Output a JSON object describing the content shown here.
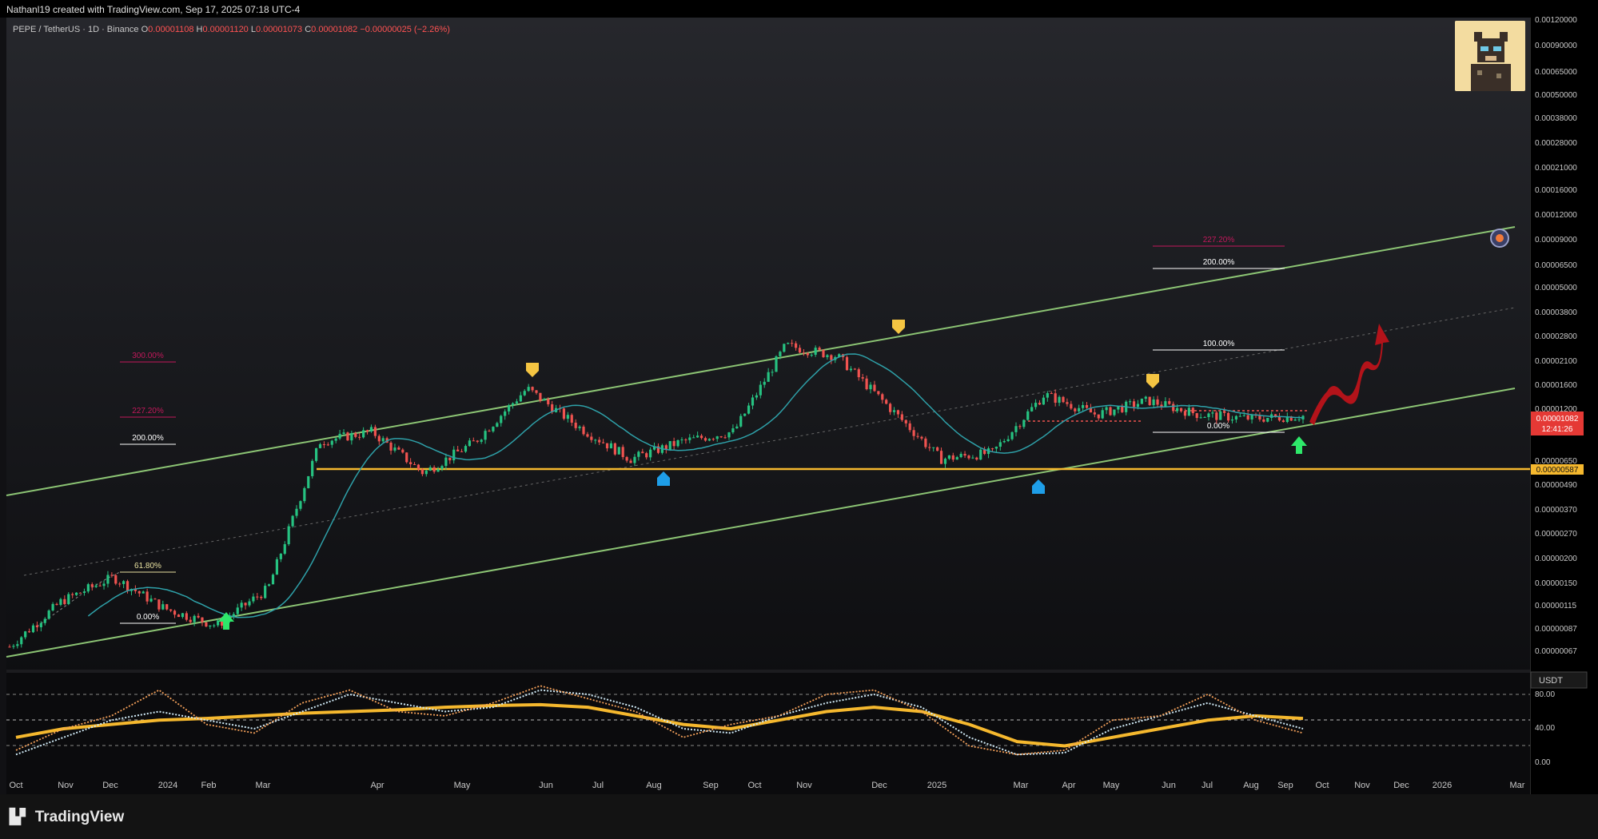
{
  "header": {
    "attribution": "Nathanl19 created with TradingView.com, Sep 17, 2025 07:18 UTC-4"
  },
  "symbol": {
    "name": "PEPE / TetherUS · 1D · Binance",
    "open_label": "O",
    "open": "0.00001108",
    "high_label": "H",
    "high": "0.00001120",
    "low_label": "L",
    "low": "0.00001073",
    "close_label": "C",
    "close": "0.00001082",
    "change": "−0.00000025 (−2.26%)"
  },
  "brand": {
    "name": "TradingView"
  },
  "colors": {
    "channel": "#7fb069",
    "support": "#f5b82e",
    "ma": "#2ea0a8",
    "up": "#26c281",
    "down": "#ef5350",
    "arrow": "#c0151b"
  },
  "chart_data": [
    {
      "type": "line",
      "scale": "log",
      "y_axis_currency": "",
      "x_ticks": [
        "Oct",
        "Nov",
        "Dec",
        "2024",
        "Feb",
        "Mar",
        "Apr",
        "May",
        "Jun",
        "Jul",
        "Aug",
        "Sep",
        "Oct",
        "Nov",
        "Dec",
        "2025",
        "Mar",
        "Apr",
        "May",
        "Jun",
        "Jul",
        "Aug",
        "Sep",
        "Oct",
        "Nov",
        "Dec",
        "2026",
        "Mar"
      ],
      "y_ticks": [
        "0.00120000",
        "0.00090000",
        "0.00065000",
        "0.00050000",
        "0.00038000",
        "0.00028000",
        "0.00021000",
        "0.00016000",
        "0.00012000",
        "0.00009000",
        "0.00006500",
        "0.00005000",
        "0.00003800",
        "0.00002800",
        "0.00002100",
        "0.00001600",
        "0.00001200",
        "0.00000650",
        "0.00000490",
        "0.00000370",
        "0.00000270",
        "0.00000200",
        "0.00000150",
        "0.00000115",
        "0.00000087",
        "0.00000067"
      ],
      "y_tick_values": [
        0.0012,
        0.0009,
        0.00065,
        0.0005,
        0.00038,
        0.00028,
        0.00021,
        0.00016,
        0.00012,
        9e-05,
        6.5e-05,
        5e-05,
        3.8e-05,
        2.8e-05,
        2.1e-05,
        1.6e-05,
        1.2e-05,
        6.5e-06,
        4.9e-06,
        3.7e-06,
        2.7e-06,
        2e-06,
        1.5e-06,
        1.15e-06,
        8.7e-07,
        6.7e-07
      ],
      "current_price": {
        "value": "0.00001082",
        "countdown": "12:41:26"
      },
      "support_level": {
        "value": "0.00000587"
      },
      "price_x": [
        0,
        4,
        8,
        12,
        16,
        20,
        24,
        28,
        32,
        36,
        40,
        44,
        48,
        52,
        56,
        60,
        64,
        68,
        72,
        76,
        80,
        84,
        88,
        92,
        96,
        100
      ],
      "price_y": [
        7e-07,
        1.2e-06,
        1.6e-06,
        1.1e-06,
        9e-07,
        1.4e-06,
        8e-06,
        9e-06,
        5.5e-06,
        8e-06,
        1.5e-05,
        9.5e-06,
        6.5e-06,
        8e-06,
        9e-06,
        2.5e-05,
        2.2e-05,
        1.2e-05,
        6.5e-06,
        7e-06,
        1.4e-05,
        1.1e-05,
        1.3e-05,
        1.1e-05,
        1.05e-05,
        1.082e-05
      ],
      "fib_labels": [
        "300.00%",
        "227.20%",
        "200.00%",
        "61.80%",
        "0.00%",
        "227.20%",
        "200.00%",
        "100.00%",
        "0.00%"
      ],
      "markers": [
        {
          "kind": "top",
          "color": "yellow"
        },
        {
          "kind": "top",
          "color": "yellow"
        },
        {
          "kind": "top",
          "color": "yellow"
        },
        {
          "kind": "bottom",
          "color": "blue"
        },
        {
          "kind": "bottom",
          "color": "blue"
        },
        {
          "kind": "buy",
          "color": "green"
        },
        {
          "kind": "buy",
          "color": "green"
        }
      ]
    },
    {
      "type": "line",
      "panel": "oscillator",
      "currency_label": "USDT",
      "y_ticks": [
        "80.00",
        "40.00",
        "0.00"
      ],
      "y_tick_values": [
        80,
        40,
        0
      ],
      "series": [
        {
          "values": [
            15,
            40,
            55,
            85,
            45,
            35,
            70,
            85,
            60,
            55,
            70,
            90,
            75,
            60,
            30,
            45,
            55,
            80,
            85,
            60,
            20,
            10,
            15,
            50,
            55,
            80,
            50,
            35
          ]
        },
        {
          "values": [
            10,
            30,
            50,
            60,
            50,
            40,
            60,
            80,
            70,
            60,
            65,
            85,
            80,
            65,
            40,
            35,
            55,
            70,
            80,
            65,
            30,
            10,
            12,
            40,
            55,
            70,
            55,
            40
          ]
        },
        {
          "values": [
            30,
            40,
            45,
            50,
            52,
            55,
            58,
            60,
            62,
            65,
            67,
            68,
            65,
            55,
            45,
            40,
            50,
            60,
            65,
            60,
            45,
            25,
            20,
            30,
            40,
            50,
            55,
            52
          ]
        }
      ]
    }
  ]
}
